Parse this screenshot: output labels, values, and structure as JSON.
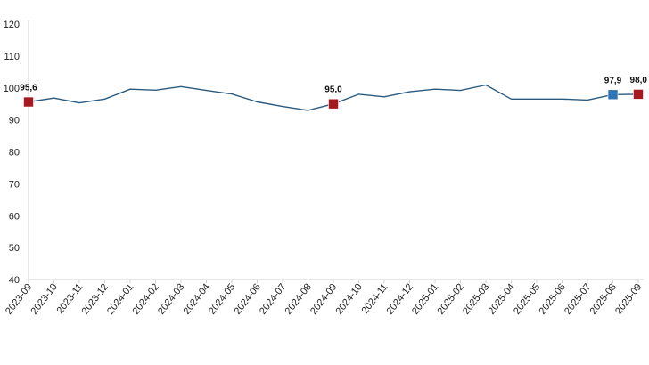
{
  "chart_data": {
    "type": "line",
    "title": "",
    "xlabel": "",
    "ylabel": "",
    "ylim": [
      40,
      120
    ],
    "yticks": [
      40,
      50,
      60,
      70,
      80,
      90,
      100,
      110,
      120
    ],
    "grid": false,
    "legend": "none",
    "x": [
      "2023-09",
      "2023-10",
      "2023-11",
      "2023-12",
      "2024-01",
      "2024-02",
      "2024-03",
      "2024-04",
      "2024-05",
      "2024-06",
      "2024-07",
      "2024-08",
      "2024-09",
      "2024-10",
      "2024-11",
      "2024-12",
      "2025-01",
      "2025-02",
      "2025-03",
      "2025-04",
      "2025-05",
      "2025-06",
      "2025-07",
      "2025-08",
      "2025-09"
    ],
    "series": [
      {
        "values": [
          95.6,
          96.8,
          95.3,
          96.5,
          99.6,
          99.3,
          100.4,
          99.2,
          98.1,
          95.6,
          94.2,
          93.0,
          95.0,
          98.0,
          97.2,
          98.8,
          99.6,
          99.2,
          100.9,
          96.5,
          96.5,
          96.5,
          96.2,
          97.9,
          98.0
        ],
        "color": "#2b5a7f"
      }
    ],
    "highlights": [
      {
        "index": 0,
        "label": "95,6",
        "color": "#a7191e"
      },
      {
        "index": 12,
        "label": "95,0",
        "color": "#a7191e"
      },
      {
        "index": 23,
        "label": "97,9",
        "color": "#2e74b5"
      },
      {
        "index": 24,
        "label": "98,0",
        "color": "#a7191e"
      }
    ]
  }
}
